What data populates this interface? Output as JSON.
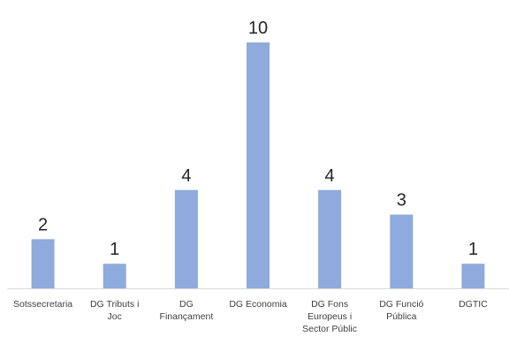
{
  "chart_data": {
    "type": "bar",
    "categories": [
      [
        "Sotssecretaria"
      ],
      [
        "DG Tributs i",
        "Joc"
      ],
      [
        "DG",
        "Finançament"
      ],
      [
        "DG Economia"
      ],
      [
        "DG Fons",
        "Europeus i",
        "Sector Públic"
      ],
      [
        "DG Funció",
        "Pública"
      ],
      [
        "DGTIC"
      ]
    ],
    "values": [
      2,
      1,
      4,
      10,
      4,
      3,
      1
    ],
    "data_labels": [
      "2",
      "1",
      "4",
      "10",
      "4",
      "3",
      "1"
    ],
    "ylim": [
      0,
      10
    ],
    "grid": false,
    "legend": "none",
    "colors": {
      "bar": "#8faadc",
      "axis": "#d9d9d9",
      "value_text": "#262626",
      "tick_text": "#404040"
    }
  }
}
